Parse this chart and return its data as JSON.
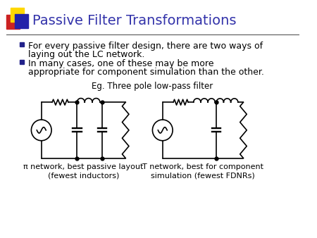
{
  "title": "Passive Filter Transformations",
  "title_color": "#3333aa",
  "title_fontsize": 14,
  "bullet1_line1": "For every passive filter design, there are two ways of",
  "bullet1_line2": "laying out the LC network.",
  "bullet2_line1": "In many cases, one of these may be more",
  "bullet2_line2": "appropriate for component simulation than the other.",
  "bullet_fontsize": 9,
  "eg_label": "Eg. Three pole low-pass filter",
  "eg_fontsize": 8.5,
  "caption1_line1": "π network, best passive layout",
  "caption1_line2": "(fewest inductors)",
  "caption2_line1": "T network, best for component",
  "caption2_line2": "simulation (fewest FDNRs)",
  "caption_fontsize": 8,
  "background_color": "#ffffff",
  "text_color": "#000000",
  "bullet_sq_color": "#22228a",
  "circuit_color": "#000000",
  "logo_yellow": "#FFD700",
  "logo_red": "#CC2222",
  "logo_blue": "#2222AA",
  "line_color": "#444444"
}
